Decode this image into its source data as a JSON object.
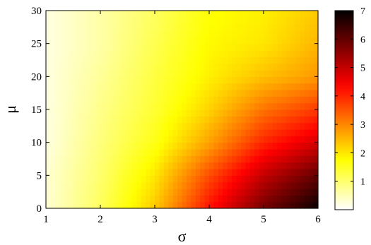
{
  "chart_data": {
    "type": "heatmap",
    "xlabel": "σ",
    "ylabel": "μ",
    "xlim": [
      1,
      6
    ],
    "ylim": [
      0,
      30
    ],
    "x_ticks": [
      "1",
      "2",
      "3",
      "4",
      "5",
      "6"
    ],
    "y_ticks": [
      "0",
      "5",
      "10",
      "15",
      "20",
      "25",
      "30"
    ],
    "x_tick_values": [
      1,
      2,
      3,
      4,
      5,
      6
    ],
    "y_tick_values": [
      0,
      5,
      10,
      15,
      20,
      25,
      30
    ],
    "colorbar": {
      "colormap": "hot (reversed)",
      "range": [
        0,
        7
      ],
      "ticks": [
        "1",
        "2",
        "3",
        "4",
        "5",
        "6",
        "7"
      ],
      "tick_values": [
        1,
        2,
        3,
        4,
        5,
        6,
        7
      ],
      "low_color": "#ffffff",
      "high_color": "#000000"
    },
    "grid": {
      "sigma": [
        1.0,
        2.0,
        3.0,
        4.0,
        5.0,
        6.0
      ],
      "mu": [
        0,
        5,
        10,
        15,
        20,
        25,
        30
      ],
      "values": [
        [
          0.3,
          1.1,
          2.3,
          4.2,
          5.8,
          6.9
        ],
        [
          0.3,
          1.0,
          2.0,
          3.6,
          5.0,
          6.0
        ],
        [
          0.2,
          0.9,
          1.6,
          2.7,
          4.0,
          4.8
        ],
        [
          0.2,
          0.8,
          1.4,
          2.2,
          3.2,
          3.8
        ],
        [
          0.2,
          0.7,
          1.3,
          1.9,
          2.4,
          2.8
        ],
        [
          0.2,
          0.6,
          1.2,
          1.8,
          2.0,
          2.5
        ],
        [
          0.2,
          0.6,
          1.1,
          1.7,
          1.9,
          2.3
        ]
      ]
    }
  },
  "palette": {
    "axis": "#000000",
    "background": "#ffffff"
  }
}
